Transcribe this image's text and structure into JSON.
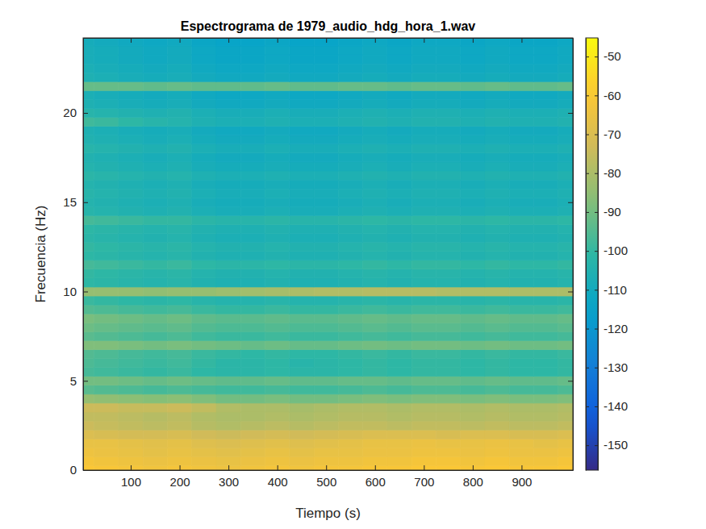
{
  "chart_data": {
    "type": "heatmap",
    "title": "Espectrograma de 1979_audio_hdg_hora_1.wav",
    "x_label": "Tiempo (s)",
    "y_label": "Frecuencia (Hz)",
    "xlim": [
      2.5,
      1005
    ],
    "ylim": [
      0,
      24.2
    ],
    "xticks": [
      100,
      200,
      300,
      400,
      500,
      600,
      700,
      800,
      900
    ],
    "yticks": [
      0,
      5,
      10,
      15,
      20
    ],
    "x": [
      0,
      50,
      100,
      150,
      200,
      250,
      300,
      350,
      400,
      450,
      500,
      550,
      600,
      650,
      700,
      750,
      800,
      850,
      900,
      950,
      1000
    ],
    "y": [
      0,
      0.5,
      1,
      1.5,
      2,
      2.5,
      3,
      3.5,
      4,
      4.5,
      5,
      5.5,
      6,
      6.5,
      7,
      7.5,
      8,
      8.5,
      9,
      9.5,
      10,
      10.5,
      11,
      11.5,
      12,
      12.5,
      13,
      13.5,
      14,
      14.5,
      15,
      15.5,
      16,
      16.5,
      17,
      17.5,
      18,
      18.5,
      19,
      19.5,
      20,
      20.5,
      21,
      21.5,
      22,
      22.5,
      23,
      23.5,
      24
    ],
    "z": [
      [
        -60,
        -61,
        -62,
        -63,
        -62,
        -63,
        -64,
        -63,
        -62,
        -63,
        -62,
        -62,
        -61,
        -61,
        -60,
        -60,
        -61,
        -60,
        -61,
        -61,
        -60
      ],
      [
        -62,
        -63,
        -64,
        -65,
        -64,
        -65,
        -66,
        -65,
        -64,
        -65,
        -64,
        -64,
        -63,
        -63,
        -62,
        -62,
        -63,
        -62,
        -63,
        -63,
        -62
      ],
      [
        -64,
        -65,
        -66,
        -67,
        -66,
        -67,
        -68,
        -67,
        -66,
        -67,
        -66,
        -66,
        -65,
        -65,
        -64,
        -64,
        -65,
        -64,
        -65,
        -65,
        -64
      ],
      [
        -66,
        -66,
        -67,
        -68,
        -67,
        -69,
        -70,
        -69,
        -68,
        -69,
        -68,
        -67,
        -66,
        -66,
        -65,
        -66,
        -66,
        -65,
        -66,
        -67,
        -66
      ],
      [
        -70,
        -71,
        -72,
        -72,
        -71,
        -73,
        -74,
        -73,
        -72,
        -73,
        -72,
        -71,
        -70,
        -70,
        -70,
        -71,
        -70,
        -70,
        -71,
        -71,
        -70
      ],
      [
        -74,
        -75,
        -76,
        -77,
        -76,
        -78,
        -79,
        -78,
        -77,
        -78,
        -77,
        -76,
        -76,
        -77,
        -76,
        -76,
        -77,
        -76,
        -77,
        -77,
        -76
      ],
      [
        -76,
        -76,
        -77,
        -78,
        -77,
        -79,
        -80,
        -80,
        -79,
        -80,
        -79,
        -78,
        -78,
        -79,
        -78,
        -78,
        -79,
        -78,
        -79,
        -79,
        -78
      ],
      [
        -74,
        -74,
        -75,
        -75,
        -74,
        -76,
        -79,
        -80,
        -80,
        -81,
        -80,
        -79,
        -79,
        -80,
        -79,
        -79,
        -80,
        -79,
        -80,
        -80,
        -79
      ],
      [
        -84,
        -85,
        -86,
        -87,
        -86,
        -88,
        -90,
        -90,
        -89,
        -90,
        -90,
        -89,
        -88,
        -89,
        -88,
        -88,
        -89,
        -88,
        -89,
        -89,
        -88
      ],
      [
        -94,
        -95,
        -96,
        -97,
        -96,
        -97,
        -98,
        -98,
        -97,
        -98,
        -98,
        -97,
        -96,
        -97,
        -96,
        -96,
        -97,
        -96,
        -97,
        -97,
        -96
      ],
      [
        -90,
        -90,
        -91,
        -92,
        -91,
        -92,
        -93,
        -93,
        -92,
        -93,
        -93,
        -92,
        -92,
        -93,
        -92,
        -92,
        -93,
        -92,
        -93,
        -93,
        -92
      ],
      [
        -97,
        -98,
        -99,
        -100,
        -99,
        -101,
        -102,
        -102,
        -101,
        -102,
        -102,
        -101,
        -100,
        -101,
        -100,
        -100,
        -101,
        -100,
        -101,
        -101,
        -100
      ],
      [
        -96,
        -97,
        -98,
        -99,
        -98,
        -100,
        -102,
        -102,
        -101,
        -103,
        -102,
        -101,
        -100,
        -101,
        -100,
        -100,
        -101,
        -100,
        -101,
        -101,
        -100
      ],
      [
        -95,
        -96,
        -97,
        -98,
        -97,
        -99,
        -100,
        -101,
        -100,
        -101,
        -101,
        -100,
        -99,
        -100,
        -99,
        -99,
        -100,
        -99,
        -100,
        -100,
        -99
      ],
      [
        -88,
        -88,
        -89,
        -90,
        -89,
        -90,
        -91,
        -92,
        -91,
        -92,
        -92,
        -91,
        -90,
        -91,
        -90,
        -90,
        -91,
        -90,
        -91,
        -91,
        -90
      ],
      [
        -94,
        -95,
        -96,
        -97,
        -96,
        -98,
        -99,
        -99,
        -98,
        -99,
        -99,
        -98,
        -97,
        -98,
        -97,
        -97,
        -98,
        -97,
        -98,
        -98,
        -97
      ],
      [
        -91,
        -92,
        -93,
        -94,
        -93,
        -95,
        -96,
        -96,
        -95,
        -96,
        -96,
        -95,
        -94,
        -95,
        -94,
        -94,
        -95,
        -94,
        -95,
        -95,
        -94
      ],
      [
        -89,
        -90,
        -91,
        -92,
        -91,
        -93,
        -94,
        -94,
        -93,
        -94,
        -94,
        -93,
        -92,
        -93,
        -92,
        -92,
        -93,
        -92,
        -93,
        -93,
        -92
      ],
      [
        -95,
        -96,
        -97,
        -98,
        -97,
        -99,
        -100,
        -100,
        -99,
        -100,
        -100,
        -99,
        -98,
        -99,
        -98,
        -98,
        -99,
        -98,
        -99,
        -99,
        -98
      ],
      [
        -99,
        -100,
        -101,
        -102,
        -101,
        -103,
        -104,
        -104,
        -103,
        -104,
        -104,
        -103,
        -102,
        -103,
        -102,
        -102,
        -103,
        -102,
        -103,
        -103,
        -102
      ],
      [
        -84,
        -84,
        -84,
        -85,
        -84,
        -84,
        -83,
        -82,
        -81,
        -80,
        -79,
        -79,
        -78,
        -78,
        -78,
        -79,
        -79,
        -79,
        -80,
        -80,
        -80
      ],
      [
        -101,
        -102,
        -103,
        -104,
        -103,
        -105,
        -106,
        -106,
        -105,
        -106,
        -106,
        -105,
        -104,
        -105,
        -104,
        -104,
        -105,
        -104,
        -105,
        -105,
        -104
      ],
      [
        -100,
        -101,
        -102,
        -103,
        -102,
        -104,
        -105,
        -105,
        -104,
        -105,
        -105,
        -104,
        -103,
        -104,
        -103,
        -103,
        -104,
        -103,
        -104,
        -104,
        -103
      ],
      [
        -97,
        -98,
        -99,
        -100,
        -99,
        -101,
        -102,
        -102,
        -101,
        -102,
        -102,
        -101,
        -100,
        -101,
        -100,
        -100,
        -101,
        -100,
        -101,
        -101,
        -100
      ],
      [
        -101,
        -102,
        -103,
        -104,
        -103,
        -105,
        -106,
        -106,
        -105,
        -106,
        -106,
        -105,
        -104,
        -105,
        -104,
        -104,
        -105,
        -104,
        -105,
        -105,
        -104
      ],
      [
        -100,
        -101,
        -102,
        -103,
        -102,
        -104,
        -105,
        -105,
        -104,
        -105,
        -105,
        -104,
        -103,
        -104,
        -103,
        -103,
        -104,
        -103,
        -104,
        -104,
        -103
      ],
      [
        -102,
        -103,
        -104,
        -105,
        -104,
        -106,
        -107,
        -107,
        -106,
        -107,
        -107,
        -106,
        -105,
        -106,
        -105,
        -105,
        -106,
        -105,
        -106,
        -106,
        -105
      ],
      [
        -101,
        -102,
        -103,
        -104,
        -103,
        -105,
        -106,
        -106,
        -105,
        -106,
        -106,
        -105,
        -104,
        -105,
        -104,
        -104,
        -105,
        -104,
        -105,
        -105,
        -104
      ],
      [
        -97,
        -98,
        -99,
        -100,
        -100,
        -102,
        -103,
        -103,
        -102,
        -103,
        -103,
        -102,
        -101,
        -102,
        -101,
        -101,
        -102,
        -101,
        -102,
        -102,
        -101
      ],
      [
        -103,
        -104,
        -105,
        -106,
        -105,
        -107,
        -108,
        -108,
        -107,
        -108,
        -108,
        -107,
        -106,
        -107,
        -106,
        -106,
        -107,
        -106,
        -107,
        -107,
        -106
      ],
      [
        -104,
        -105,
        -106,
        -107,
        -106,
        -108,
        -109,
        -109,
        -108,
        -109,
        -109,
        -108,
        -107,
        -108,
        -107,
        -107,
        -108,
        -107,
        -108,
        -108,
        -107
      ],
      [
        -103,
        -104,
        -105,
        -106,
        -105,
        -107,
        -108,
        -108,
        -107,
        -108,
        -108,
        -107,
        -106,
        -107,
        -106,
        -106,
        -107,
        -106,
        -107,
        -107,
        -106
      ],
      [
        -104,
        -105,
        -106,
        -107,
        -106,
        -108,
        -109,
        -109,
        -108,
        -109,
        -109,
        -108,
        -107,
        -108,
        -107,
        -107,
        -108,
        -107,
        -108,
        -108,
        -107
      ],
      [
        -102,
        -103,
        -104,
        -105,
        -104,
        -106,
        -107,
        -107,
        -106,
        -107,
        -107,
        -106,
        -105,
        -106,
        -105,
        -105,
        -106,
        -105,
        -106,
        -106,
        -105
      ],
      [
        -104,
        -105,
        -106,
        -107,
        -106,
        -108,
        -109,
        -109,
        -108,
        -109,
        -109,
        -108,
        -107,
        -108,
        -107,
        -107,
        -108,
        -107,
        -108,
        -108,
        -107
      ],
      [
        -105,
        -106,
        -107,
        -108,
        -107,
        -109,
        -110,
        -110,
        -109,
        -110,
        -110,
        -109,
        -108,
        -109,
        -108,
        -108,
        -109,
        -108,
        -109,
        -109,
        -108
      ],
      [
        -103,
        -104,
        -105,
        -106,
        -105,
        -107,
        -108,
        -108,
        -107,
        -108,
        -108,
        -107,
        -106,
        -107,
        -106,
        -106,
        -107,
        -106,
        -107,
        -107,
        -106
      ],
      [
        -105,
        -106,
        -107,
        -108,
        -107,
        -109,
        -110,
        -110,
        -109,
        -110,
        -110,
        -109,
        -108,
        -109,
        -108,
        -108,
        -109,
        -108,
        -109,
        -109,
        -108
      ],
      [
        -106,
        -107,
        -108,
        -109,
        -108,
        -110,
        -111,
        -111,
        -110,
        -111,
        -111,
        -110,
        -109,
        -110,
        -109,
        -109,
        -110,
        -109,
        -110,
        -110,
        -109
      ],
      [
        -98,
        -99,
        -101,
        -103,
        -104,
        -106,
        -107,
        -107,
        -106,
        -107,
        -107,
        -106,
        -105,
        -106,
        -105,
        -105,
        -106,
        -105,
        -106,
        -106,
        -105
      ],
      [
        -103,
        -104,
        -105,
        -106,
        -105,
        -107,
        -108,
        -108,
        -107,
        -108,
        -108,
        -107,
        -106,
        -107,
        -106,
        -106,
        -107,
        -106,
        -107,
        -107,
        -106
      ],
      [
        -106,
        -107,
        -108,
        -109,
        -108,
        -110,
        -111,
        -111,
        -110,
        -111,
        -111,
        -110,
        -109,
        -110,
        -109,
        -109,
        -110,
        -109,
        -110,
        -110,
        -109
      ],
      [
        -107,
        -108,
        -109,
        -110,
        -109,
        -111,
        -112,
        -112,
        -111,
        -112,
        -112,
        -111,
        -110,
        -111,
        -110,
        -110,
        -111,
        -110,
        -111,
        -111,
        -110
      ],
      [
        -92,
        -92,
        -92,
        -93,
        -92,
        -93,
        -93,
        -93,
        -92,
        -93,
        -93,
        -92,
        -92,
        -93,
        -92,
        -92,
        -93,
        -92,
        -93,
        -93,
        -92
      ],
      [
        -106,
        -107,
        -108,
        -109,
        -108,
        -110,
        -111,
        -111,
        -110,
        -111,
        -111,
        -110,
        -109,
        -110,
        -109,
        -109,
        -110,
        -109,
        -110,
        -110,
        -109
      ],
      [
        -107,
        -108,
        -109,
        -110,
        -109,
        -111,
        -112,
        -112,
        -111,
        -112,
        -112,
        -111,
        -110,
        -111,
        -110,
        -110,
        -111,
        -110,
        -111,
        -111,
        -110
      ],
      [
        -108,
        -109,
        -110,
        -111,
        -110,
        -112,
        -113,
        -113,
        -112,
        -113,
        -113,
        -112,
        -111,
        -112,
        -111,
        -111,
        -112,
        -111,
        -112,
        -112,
        -111
      ],
      [
        -108,
        -109,
        -110,
        -111,
        -110,
        -112,
        -113,
        -113,
        -112,
        -113,
        -113,
        -112,
        -111,
        -112,
        -111,
        -111,
        -112,
        -111,
        -112,
        -112,
        -111
      ],
      [
        -109,
        -110,
        -111,
        -112,
        -111,
        -113,
        -114,
        -114,
        -113,
        -114,
        -114,
        -113,
        -112,
        -113,
        -112,
        -112,
        -113,
        -112,
        -113,
        -113,
        -112
      ]
    ],
    "colorbar": {
      "range": [
        -156.4,
        -45.2
      ],
      "ticks": [
        -150,
        -140,
        -130,
        -120,
        -110,
        -100,
        -90,
        -80,
        -70,
        -60,
        -50
      ]
    }
  }
}
